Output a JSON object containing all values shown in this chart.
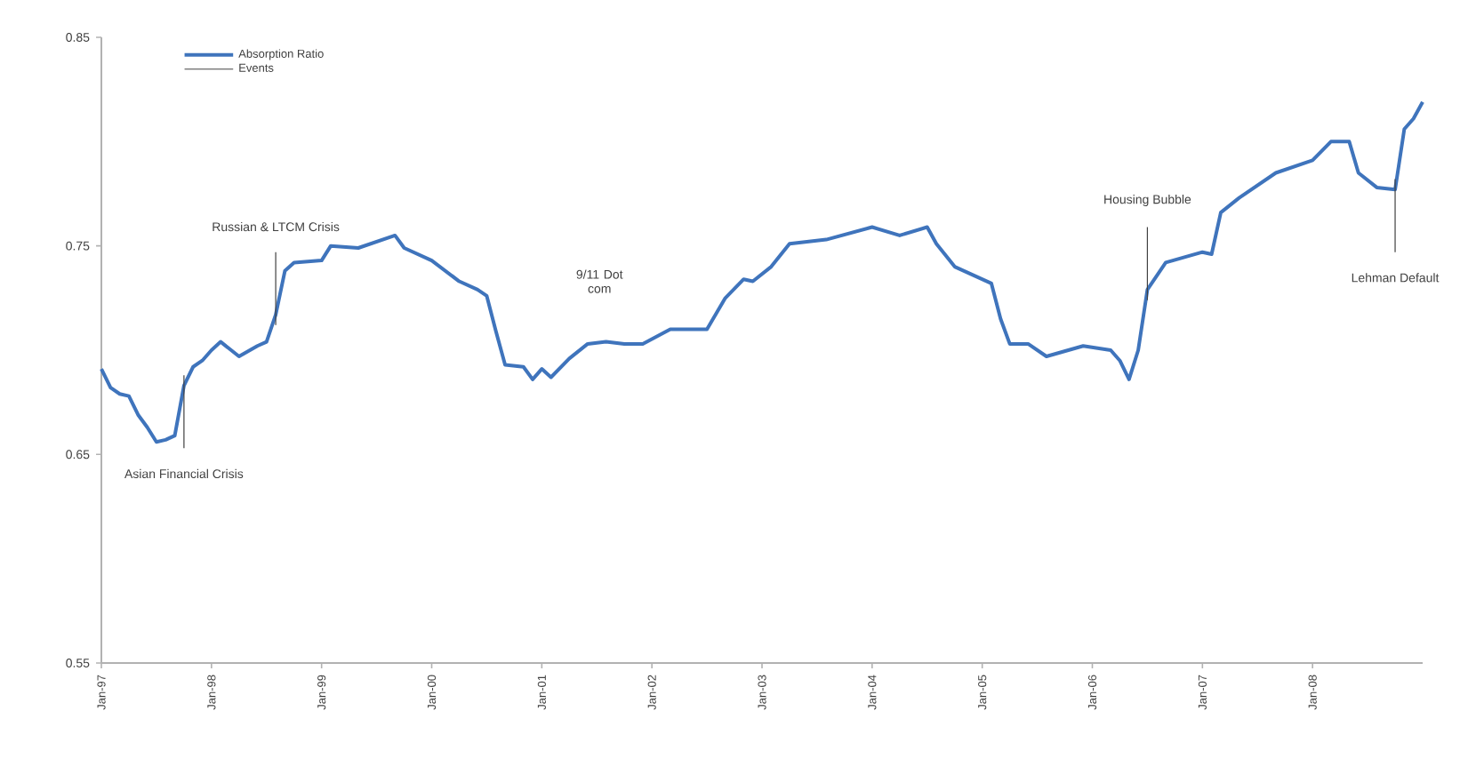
{
  "chart_data": {
    "type": "line",
    "x": [
      "1997-01",
      "1997-02",
      "1997-03",
      "1997-04",
      "1997-05",
      "1997-06",
      "1997-07",
      "1997-08",
      "1997-09",
      "1997-10",
      "1997-11",
      "1997-12",
      "1998-01",
      "1998-02",
      "1998-04",
      "1998-06",
      "1998-07",
      "1998-08",
      "1998-09",
      "1998-10",
      "1999-01",
      "1999-02",
      "1999-05",
      "1999-07",
      "1999-09",
      "1999-10",
      "2000-01",
      "2000-04",
      "2000-06",
      "2000-07",
      "2000-08",
      "2000-09",
      "2000-11",
      "2000-12",
      "2001-01",
      "2001-02",
      "2001-04",
      "2001-06",
      "2001-08",
      "2001-10",
      "2001-12",
      "2002-03",
      "2002-07",
      "2002-09",
      "2002-11",
      "2002-12",
      "2003-02",
      "2003-04",
      "2003-08",
      "2004-01",
      "2004-04",
      "2004-07",
      "2004-08",
      "2004-10",
      "2004-12",
      "2005-02",
      "2005-03",
      "2005-04",
      "2005-06",
      "2005-08",
      "2005-12",
      "2006-03",
      "2006-04",
      "2006-05",
      "2006-06",
      "2006-07",
      "2006-09",
      "2007-01",
      "2007-02",
      "2007-03",
      "2007-05",
      "2007-09",
      "2008-01",
      "2008-03",
      "2008-05",
      "2008-06",
      "2008-08",
      "2008-10",
      "2008-11",
      "2008-12",
      "2009-01"
    ],
    "series": [
      {
        "name": "Absorption Ratio",
        "color": "#3f74bc",
        "values": [
          0.691,
          0.682,
          0.679,
          0.678,
          0.669,
          0.663,
          0.656,
          0.657,
          0.659,
          0.683,
          0.692,
          0.695,
          0.7,
          0.704,
          0.697,
          0.702,
          0.704,
          0.717,
          0.738,
          0.742,
          0.743,
          0.75,
          0.749,
          0.752,
          0.755,
          0.749,
          0.743,
          0.733,
          0.729,
          0.726,
          0.709,
          0.693,
          0.692,
          0.686,
          0.691,
          0.687,
          0.696,
          0.703,
          0.704,
          0.703,
          0.703,
          0.71,
          0.71,
          0.725,
          0.734,
          0.733,
          0.74,
          0.751,
          0.753,
          0.759,
          0.755,
          0.759,
          0.751,
          0.74,
          0.736,
          0.732,
          0.715,
          0.703,
          0.703,
          0.697,
          0.702,
          0.7,
          0.695,
          0.686,
          0.7,
          0.729,
          0.742,
          0.747,
          0.746,
          0.766,
          0.773,
          0.785,
          0.791,
          0.8,
          0.8,
          0.785,
          0.778,
          0.777,
          0.806,
          0.811,
          0.819
        ]
      }
    ],
    "xlim": [
      "1997-01",
      "2009-01"
    ],
    "xticks": [
      {
        "value": "1997-01",
        "label": "Jan-97"
      },
      {
        "value": "1998-01",
        "label": "Jan-98"
      },
      {
        "value": "1999-01",
        "label": "Jan-99"
      },
      {
        "value": "2000-01",
        "label": "Jan-00"
      },
      {
        "value": "2001-01",
        "label": "Jan-01"
      },
      {
        "value": "2002-01",
        "label": "Jan-02"
      },
      {
        "value": "2003-01",
        "label": "Jan-03"
      },
      {
        "value": "2004-01",
        "label": "Jan-04"
      },
      {
        "value": "2005-01",
        "label": "Jan-05"
      },
      {
        "value": "2006-01",
        "label": "Jan-06"
      },
      {
        "value": "2007-01",
        "label": "Jan-07"
      },
      {
        "value": "2008-01",
        "label": "Jan-08"
      }
    ],
    "ylim": [
      0.55,
      0.85
    ],
    "yticks": [
      0.55,
      0.65,
      0.75,
      0.85
    ],
    "ref_lines": [
      {
        "axis": "x",
        "value": "1997-10",
        "label": "Asian Financial Crisis",
        "color": "#404040"
      },
      {
        "axis": "x",
        "value": "1998-08",
        "label": "Russian & LTCM Crisis",
        "color": "#404040"
      },
      {
        "axis": "x",
        "value": "2006-07",
        "label": "Housing Bubble",
        "color": "#404040"
      },
      {
        "axis": "x",
        "value": "2008-10",
        "label": "Lehman Default",
        "color": "#404040"
      }
    ],
    "annotations": [
      "9/11 Dot com",
      "Events"
    ],
    "legend": "top left",
    "grid": false,
    "marker": "none",
    "line_style": "solid"
  }
}
